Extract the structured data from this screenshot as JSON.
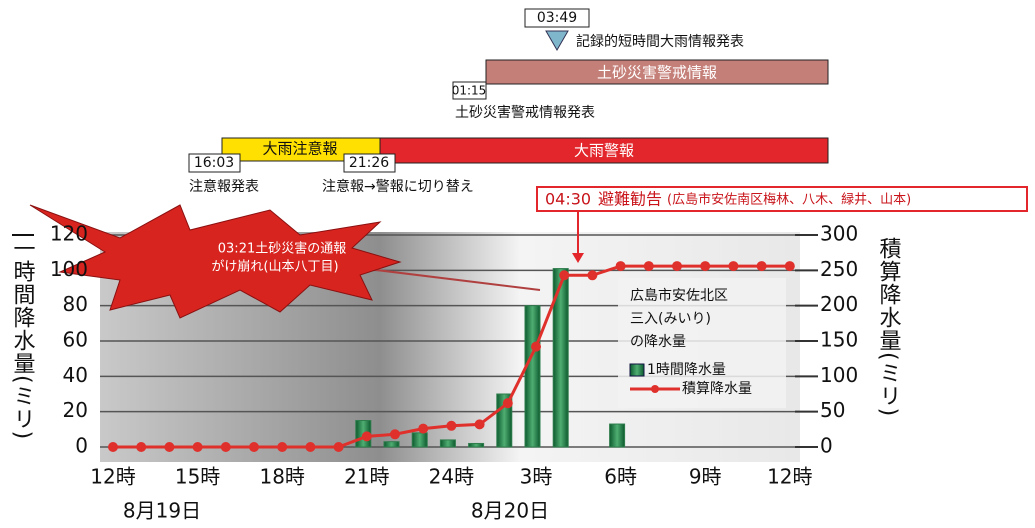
{
  "chart_data": {
    "type": "bar_line",
    "categories": [
      "12時",
      null,
      null,
      "15時",
      null,
      null,
      "18時",
      null,
      null,
      "21時",
      null,
      null,
      "24時",
      null,
      null,
      "3時",
      null,
      null,
      "6時",
      null,
      null,
      "9時",
      null,
      null,
      "12時"
    ],
    "date_labels": [
      "8月19日",
      "8月20日"
    ],
    "ylabel": "一時間降水量(ミリ)",
    "y2label": "積算降水量(ミリ)",
    "ylim": [
      0,
      120
    ],
    "yticks": [
      0,
      20,
      40,
      60,
      80,
      100,
      120
    ],
    "y2lim": [
      0,
      300
    ],
    "y2ticks": [
      0,
      50,
      100,
      150,
      200,
      250,
      300
    ],
    "grid": true,
    "series": [
      {
        "name": "1時間降水量",
        "color": "#2f7d4c",
        "values": [
          0,
          0,
          0,
          0,
          0,
          0,
          0,
          0,
          0,
          15,
          3,
          8,
          4,
          2,
          30,
          80,
          101,
          0,
          13,
          0,
          0,
          0,
          0,
          0,
          0
        ]
      },
      {
        "name": "積算降水量",
        "color": "#e0302c",
        "axis": "y2",
        "values": [
          0,
          0,
          0,
          0,
          0,
          0,
          0,
          0,
          0,
          15,
          18,
          26,
          30,
          32,
          62,
          142,
          243,
          243,
          256,
          256,
          256,
          256,
          256,
          256,
          256
        ]
      }
    ],
    "legend_note": [
      "広島市安佐北区",
      "三入(みいり)",
      "の降水量"
    ],
    "callout": [
      "03:21土砂災害の通報",
      "がけ崩れ(山本八丁目)"
    ],
    "timeline": {
      "periods": [
        "土砂災害警戒情報",
        "大雨注意報",
        "大雨警報"
      ],
      "events": [
        {
          "time": "03:49",
          "label": "記録的短時間大雨情報発表"
        },
        {
          "time": "01:15",
          "label": "土砂災害警戒情報発表"
        },
        {
          "time": "16:03",
          "label": "注意報発表"
        },
        {
          "time": "21:26",
          "label": "注意報→警報に切り替え"
        }
      ],
      "evacuation": {
        "time": "04:30",
        "label": "避難勧告",
        "detail": "(広島市安佐南区梅林、八木、緑井、山本)"
      }
    }
  }
}
